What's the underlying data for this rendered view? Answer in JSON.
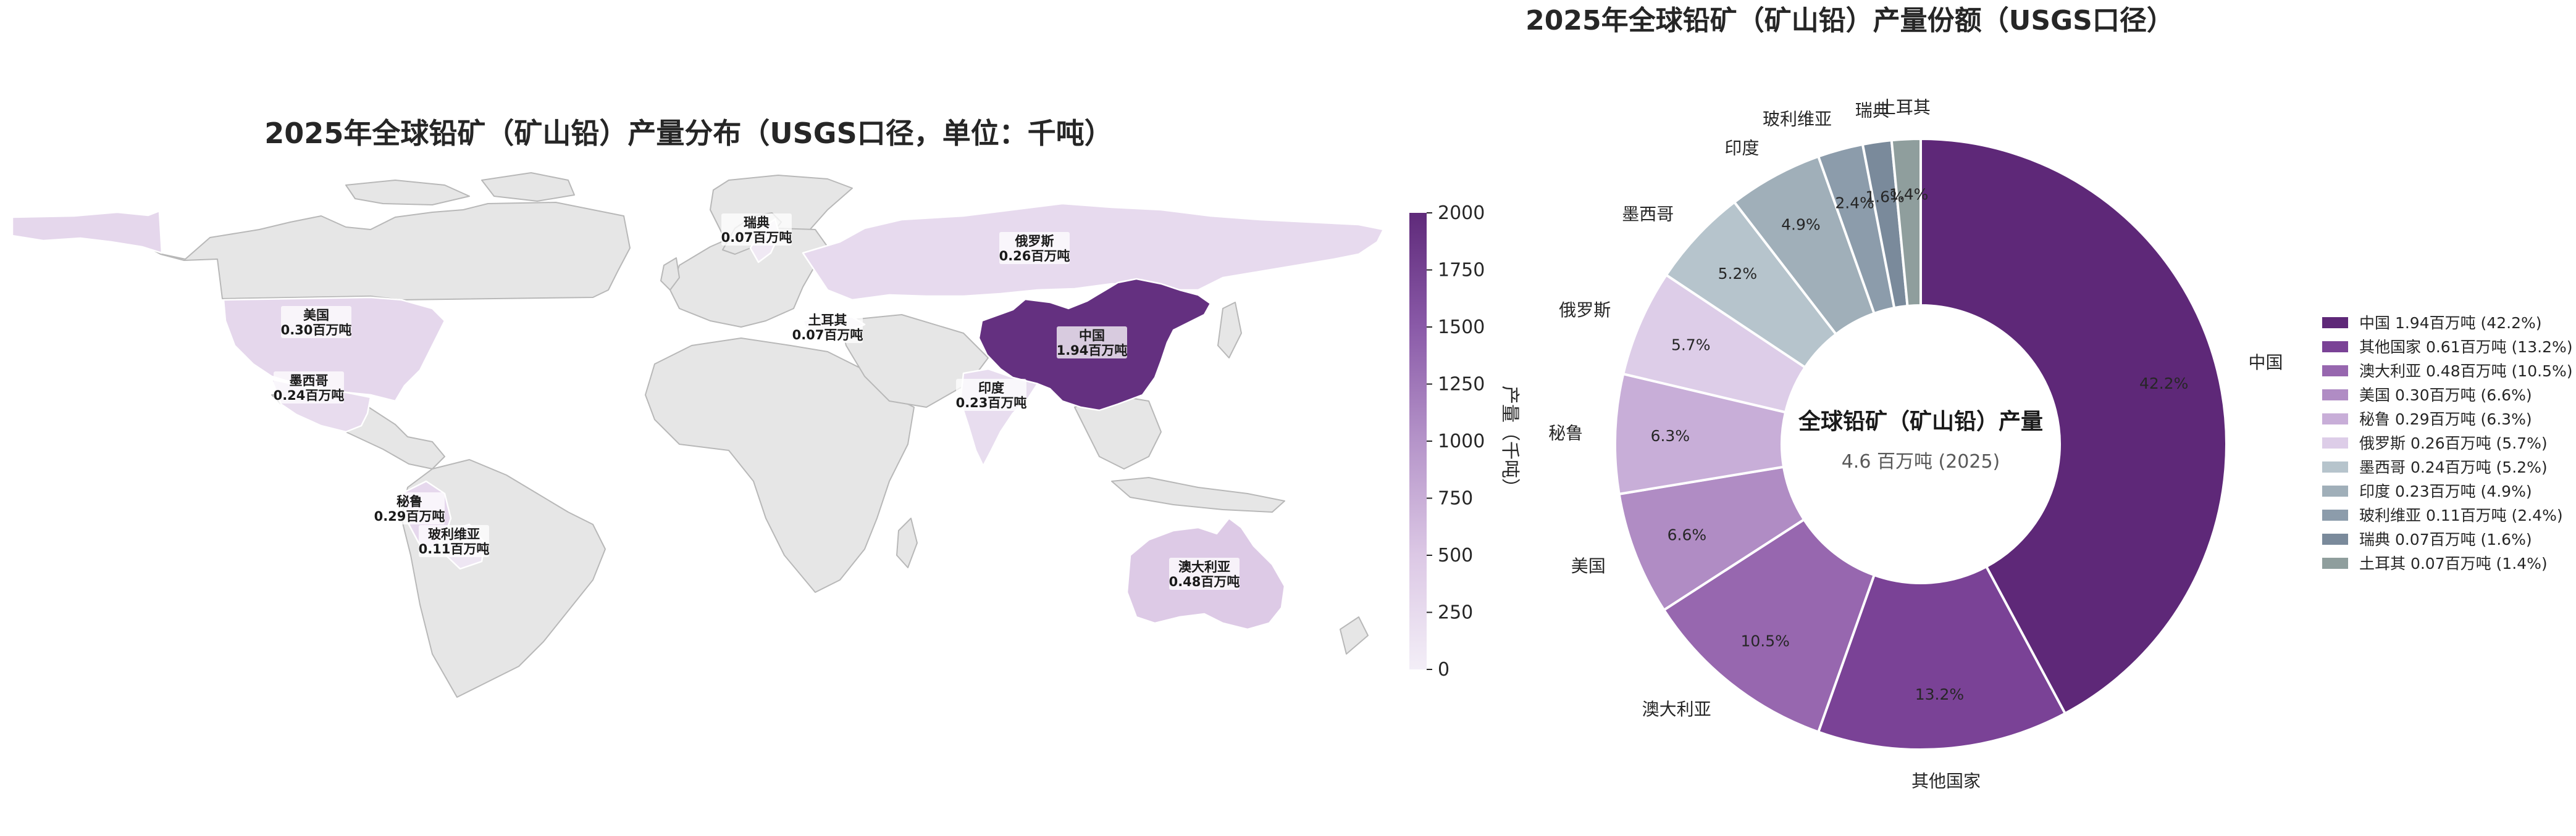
{
  "chart_data": [
    {
      "type": "choropleth-map",
      "title": "2025年全球铅矿（矿山铅）产量分布（USGS口径，单位：千吨）",
      "colorbar": {
        "label": "产量（千吨）",
        "range": [
          0,
          2000
        ],
        "ticks": [
          0,
          250,
          500,
          750,
          1000,
          1250,
          1500,
          1750,
          2000
        ],
        "colors": [
          "#f3eef7",
          "#dcc8e5",
          "#b594c9",
          "#8a5aa8",
          "#5f2a7a"
        ]
      },
      "regions": [
        {
          "name": "中国",
          "value": 1940,
          "label": "1.94百万吨"
        },
        {
          "name": "澳大利亚",
          "value": 480,
          "label": "0.48百万吨"
        },
        {
          "name": "美国",
          "value": 300,
          "label": "0.30百万吨"
        },
        {
          "name": "秘鲁",
          "value": 290,
          "label": "0.29百万吨"
        },
        {
          "name": "俄罗斯",
          "value": 260,
          "label": "0.26百万吨"
        },
        {
          "name": "墨西哥",
          "value": 240,
          "label": "0.24百万吨"
        },
        {
          "name": "印度",
          "value": 230,
          "label": "0.23百万吨"
        },
        {
          "name": "玻利维亚",
          "value": 110,
          "label": "0.11百万吨"
        },
        {
          "name": "瑞典",
          "value": 70,
          "label": "0.07百万吨"
        },
        {
          "name": "土耳其",
          "value": 70,
          "label": "0.07百万吨"
        }
      ]
    },
    {
      "type": "pie",
      "title": "2025年全球铅矿（矿山铅）产量份额（USGS口径）",
      "center_title": "全球铅矿（矿山铅）产量",
      "center_subtitle": "4.6 百万吨 (2025)",
      "slices": [
        {
          "name": "中国",
          "value": 1.94,
          "pct": "42.2%",
          "color": "#5e2878",
          "legend": "中国  1.94百万吨 (42.2%)"
        },
        {
          "name": "其他国家",
          "value": 0.61,
          "pct": "13.2%",
          "color": "#7a4296",
          "legend": "其他国家  0.61百万吨 (13.2%)"
        },
        {
          "name": "澳大利亚",
          "value": 0.48,
          "pct": "10.5%",
          "color": "#9767af",
          "legend": "澳大利亚  0.48百万吨 (10.5%)"
        },
        {
          "name": "美国",
          "value": 0.3,
          "pct": "6.6%",
          "color": "#b08cc4",
          "legend": "美国  0.30百万吨 (6.6%)"
        },
        {
          "name": "秘鲁",
          "value": 0.29,
          "pct": "6.3%",
          "color": "#c8aed8",
          "legend": "秘鲁  0.29百万吨 (6.3%)"
        },
        {
          "name": "俄罗斯",
          "value": 0.26,
          "pct": "5.7%",
          "color": "#ddcde8",
          "legend": "俄罗斯  0.26百万吨 (5.7%)"
        },
        {
          "name": "墨西哥",
          "value": 0.24,
          "pct": "5.2%",
          "color": "#b6c4cc",
          "legend": "墨西哥  0.24百万吨 (5.2%)"
        },
        {
          "name": "印度",
          "value": 0.23,
          "pct": "4.9%",
          "color": "#a0afb9",
          "legend": "印度  0.23百万吨 (4.9%)"
        },
        {
          "name": "玻利维亚",
          "value": 0.11,
          "pct": "2.4%",
          "color": "#8c9cab",
          "legend": "玻利维亚  0.11百万吨 (2.4%)"
        },
        {
          "name": "瑞典",
          "value": 0.07,
          "pct": "1.6%",
          "color": "#7a8a9b",
          "legend": "瑞典  0.07百万吨 (1.6%)"
        },
        {
          "name": "土耳其",
          "value": 0.07,
          "pct": "1.4%",
          "color": "#8f9e9d",
          "legend": "土耳其  0.07百万吨 (1.4%)"
        }
      ]
    }
  ]
}
